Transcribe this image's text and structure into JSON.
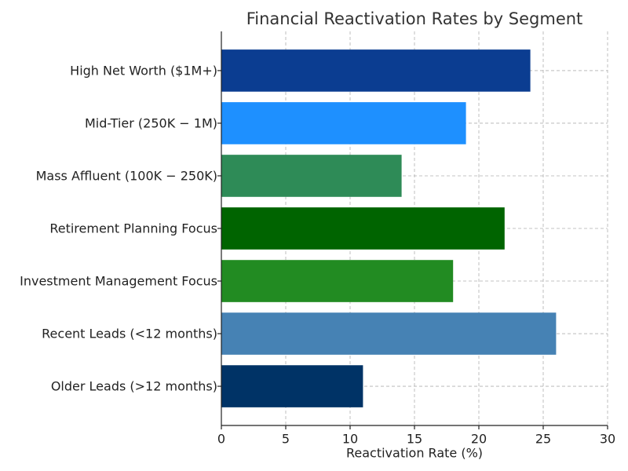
{
  "chart_data": {
    "type": "barh",
    "title": "Financial Reactivation Rates by Segment",
    "x_label": "Reactivation Rate (%)",
    "categories": [
      "High Net Worth ($1M+)",
      "Mid-Tier (250K − 1M)",
      "Mass Affluent (100K − 250K)",
      "Retirement Planning Focus",
      "Investment Management Focus",
      "Recent Leads (<12 months)",
      "Older Leads (>12 months)"
    ],
    "values": [
      24,
      19,
      14,
      22,
      18,
      26,
      11
    ],
    "colors": [
      "#0b3d91",
      "#1e90ff",
      "#2e8b57",
      "#006400",
      "#228b22",
      "#4682b4",
      "#003366"
    ],
    "xlim": [
      0,
      30
    ],
    "xticks": [
      0,
      5,
      10,
      15,
      20,
      25,
      30
    ],
    "grid": true
  }
}
